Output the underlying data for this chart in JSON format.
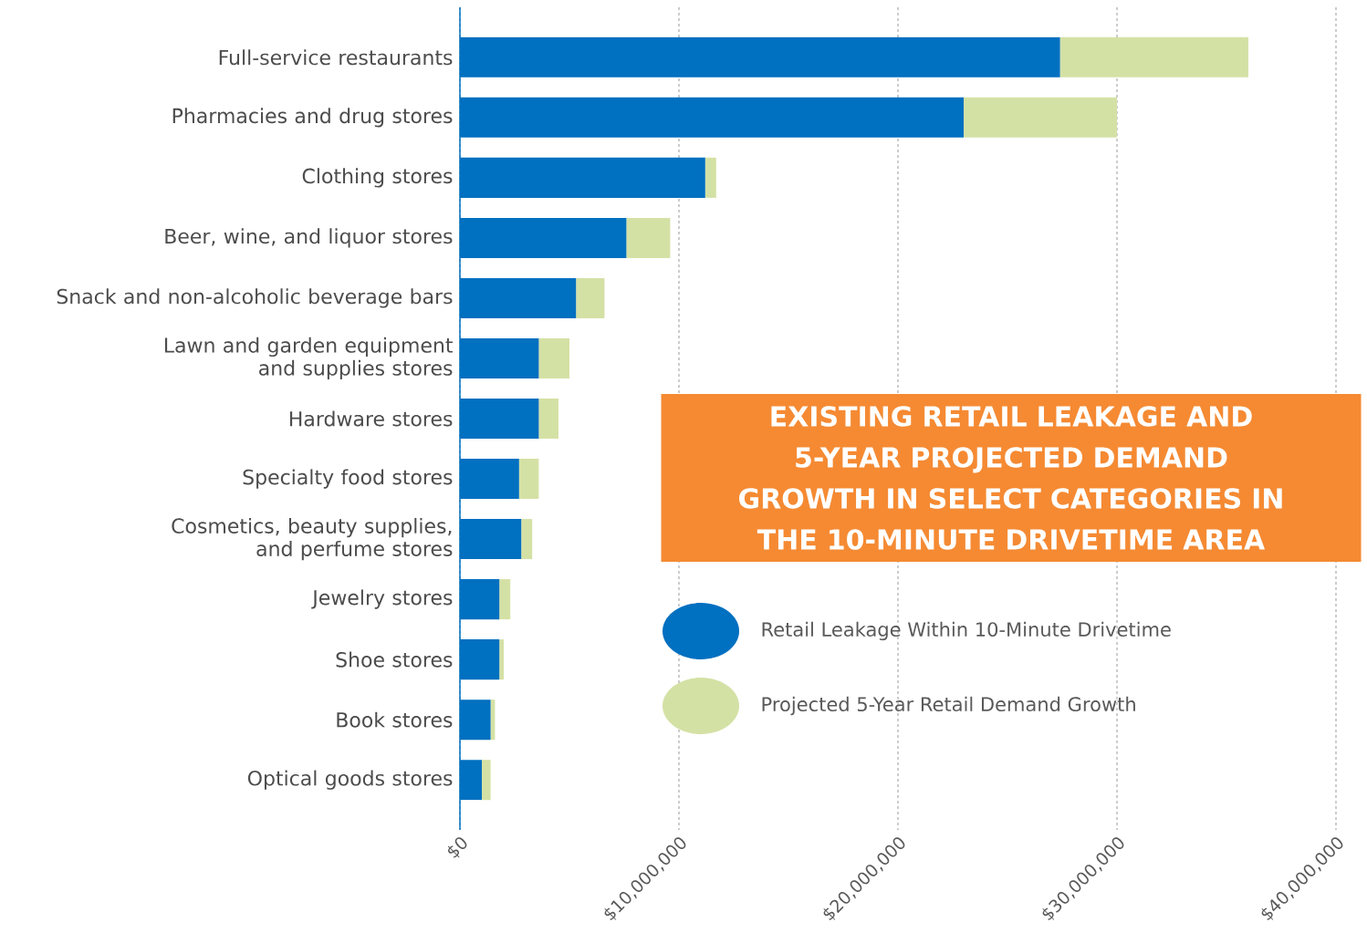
{
  "chart_data": {
    "type": "bar",
    "orientation": "horizontal",
    "stacked": true,
    "title": "EXISTING RETAIL LEAKAGE AND 5-YEAR PROJECTED DEMAND GROWTH IN SELECT CATEGORIES IN THE 10-MINUTE DRIVETIME AREA",
    "categories": [
      "Full-service restaurants",
      "Pharmacies and drug stores",
      "Clothing stores",
      "Beer, wine, and liquor stores",
      "Snack and non-alcoholic beverage bars",
      "Lawn and garden equipment and supplies stores",
      "Hardware stores",
      "Specialty food stores",
      "Cosmetics, beauty supplies, and perfume stores",
      "Jewelry stores",
      "Shoe stores",
      "Book stores",
      "Optical goods stores"
    ],
    "series": [
      {
        "name": "Retail Leakage Within 10-Minute Drivetime",
        "color": "#0070c0",
        "values": [
          27400000,
          23000000,
          11200000,
          7600000,
          5300000,
          3600000,
          3600000,
          2700000,
          2800000,
          1800000,
          1800000,
          1400000,
          1000000
        ]
      },
      {
        "name": "Projected 5-Year Retail Demand Growth",
        "color": "#d4e1a5",
        "values": [
          8600000,
          7000000,
          500000,
          2000000,
          1300000,
          1400000,
          900000,
          900000,
          500000,
          500000,
          200000,
          200000,
          400000
        ]
      }
    ],
    "xlim": [
      0,
      40000000
    ],
    "xticks": [
      {
        "value": 0,
        "label": "$0"
      },
      {
        "value": 10000000,
        "label": "$10,000,000"
      },
      {
        "value": 20000000,
        "label": "$20,000,000"
      },
      {
        "value": 30000000,
        "label": "$30,000,000"
      },
      {
        "value": 40000000,
        "label": "$40,000,000"
      }
    ],
    "grid": "x",
    "legend": "bottom right"
  }
}
